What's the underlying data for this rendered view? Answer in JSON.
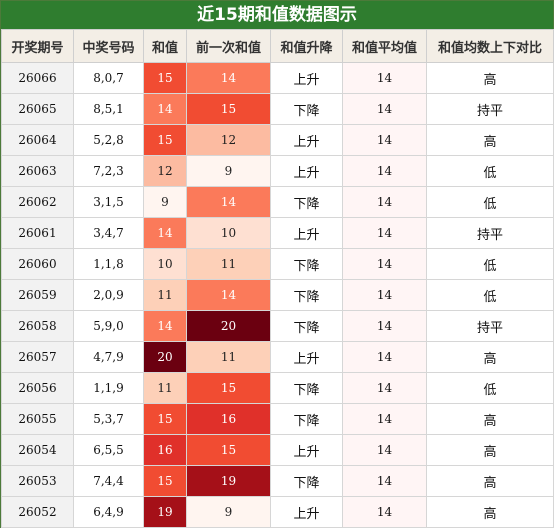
{
  "title": "近15期和值数据图示",
  "columns": [
    "开奖期号",
    "中奖号码",
    "和值",
    "前一次和值",
    "和值升降",
    "和值平均值",
    "和值均数上下对比"
  ],
  "rows": [
    {
      "issue": "26066",
      "numbers": "8,0,7",
      "sum": "15",
      "prev": "14",
      "trend": "上升",
      "avg": "14",
      "cmp": "高"
    },
    {
      "issue": "26065",
      "numbers": "8,5,1",
      "sum": "14",
      "prev": "15",
      "trend": "下降",
      "avg": "14",
      "cmp": "持平"
    },
    {
      "issue": "26064",
      "numbers": "5,2,8",
      "sum": "15",
      "prev": "12",
      "trend": "上升",
      "avg": "14",
      "cmp": "高"
    },
    {
      "issue": "26063",
      "numbers": "7,2,3",
      "sum": "12",
      "prev": "9",
      "trend": "上升",
      "avg": "14",
      "cmp": "低"
    },
    {
      "issue": "26062",
      "numbers": "3,1,5",
      "sum": "9",
      "prev": "14",
      "trend": "下降",
      "avg": "14",
      "cmp": "低"
    },
    {
      "issue": "26061",
      "numbers": "3,4,7",
      "sum": "14",
      "prev": "10",
      "trend": "上升",
      "avg": "14",
      "cmp": "持平"
    },
    {
      "issue": "26060",
      "numbers": "1,1,8",
      "sum": "10",
      "prev": "11",
      "trend": "下降",
      "avg": "14",
      "cmp": "低"
    },
    {
      "issue": "26059",
      "numbers": "2,0,9",
      "sum": "11",
      "prev": "14",
      "trend": "下降",
      "avg": "14",
      "cmp": "低"
    },
    {
      "issue": "26058",
      "numbers": "5,9,0",
      "sum": "14",
      "prev": "20",
      "trend": "下降",
      "avg": "14",
      "cmp": "持平"
    },
    {
      "issue": "26057",
      "numbers": "4,7,9",
      "sum": "20",
      "prev": "11",
      "trend": "上升",
      "avg": "14",
      "cmp": "高"
    },
    {
      "issue": "26056",
      "numbers": "1,1,9",
      "sum": "11",
      "prev": "15",
      "trend": "下降",
      "avg": "14",
      "cmp": "低"
    },
    {
      "issue": "26055",
      "numbers": "5,3,7",
      "sum": "15",
      "prev": "16",
      "trend": "下降",
      "avg": "14",
      "cmp": "高"
    },
    {
      "issue": "26054",
      "numbers": "6,5,5",
      "sum": "16",
      "prev": "15",
      "trend": "上升",
      "avg": "14",
      "cmp": "高"
    },
    {
      "issue": "26053",
      "numbers": "7,4,4",
      "sum": "15",
      "prev": "19",
      "trend": "下降",
      "avg": "14",
      "cmp": "高"
    },
    {
      "issue": "26052",
      "numbers": "6,4,9",
      "sum": "19",
      "prev": "9",
      "trend": "上升",
      "avg": "14",
      "cmp": "高"
    }
  ],
  "heat_colors": {
    "9": "#fff5f0",
    "10": "#fee0d2",
    "11": "#fdd0b8",
    "12": "#fcbba1",
    "14": "#fb7a5a",
    "15": "#f14c32",
    "16": "#e0302a",
    "19": "#a51018",
    "20": "#6b0010"
  },
  "dark_text_values": [
    "9",
    "10",
    "11",
    "12"
  ]
}
